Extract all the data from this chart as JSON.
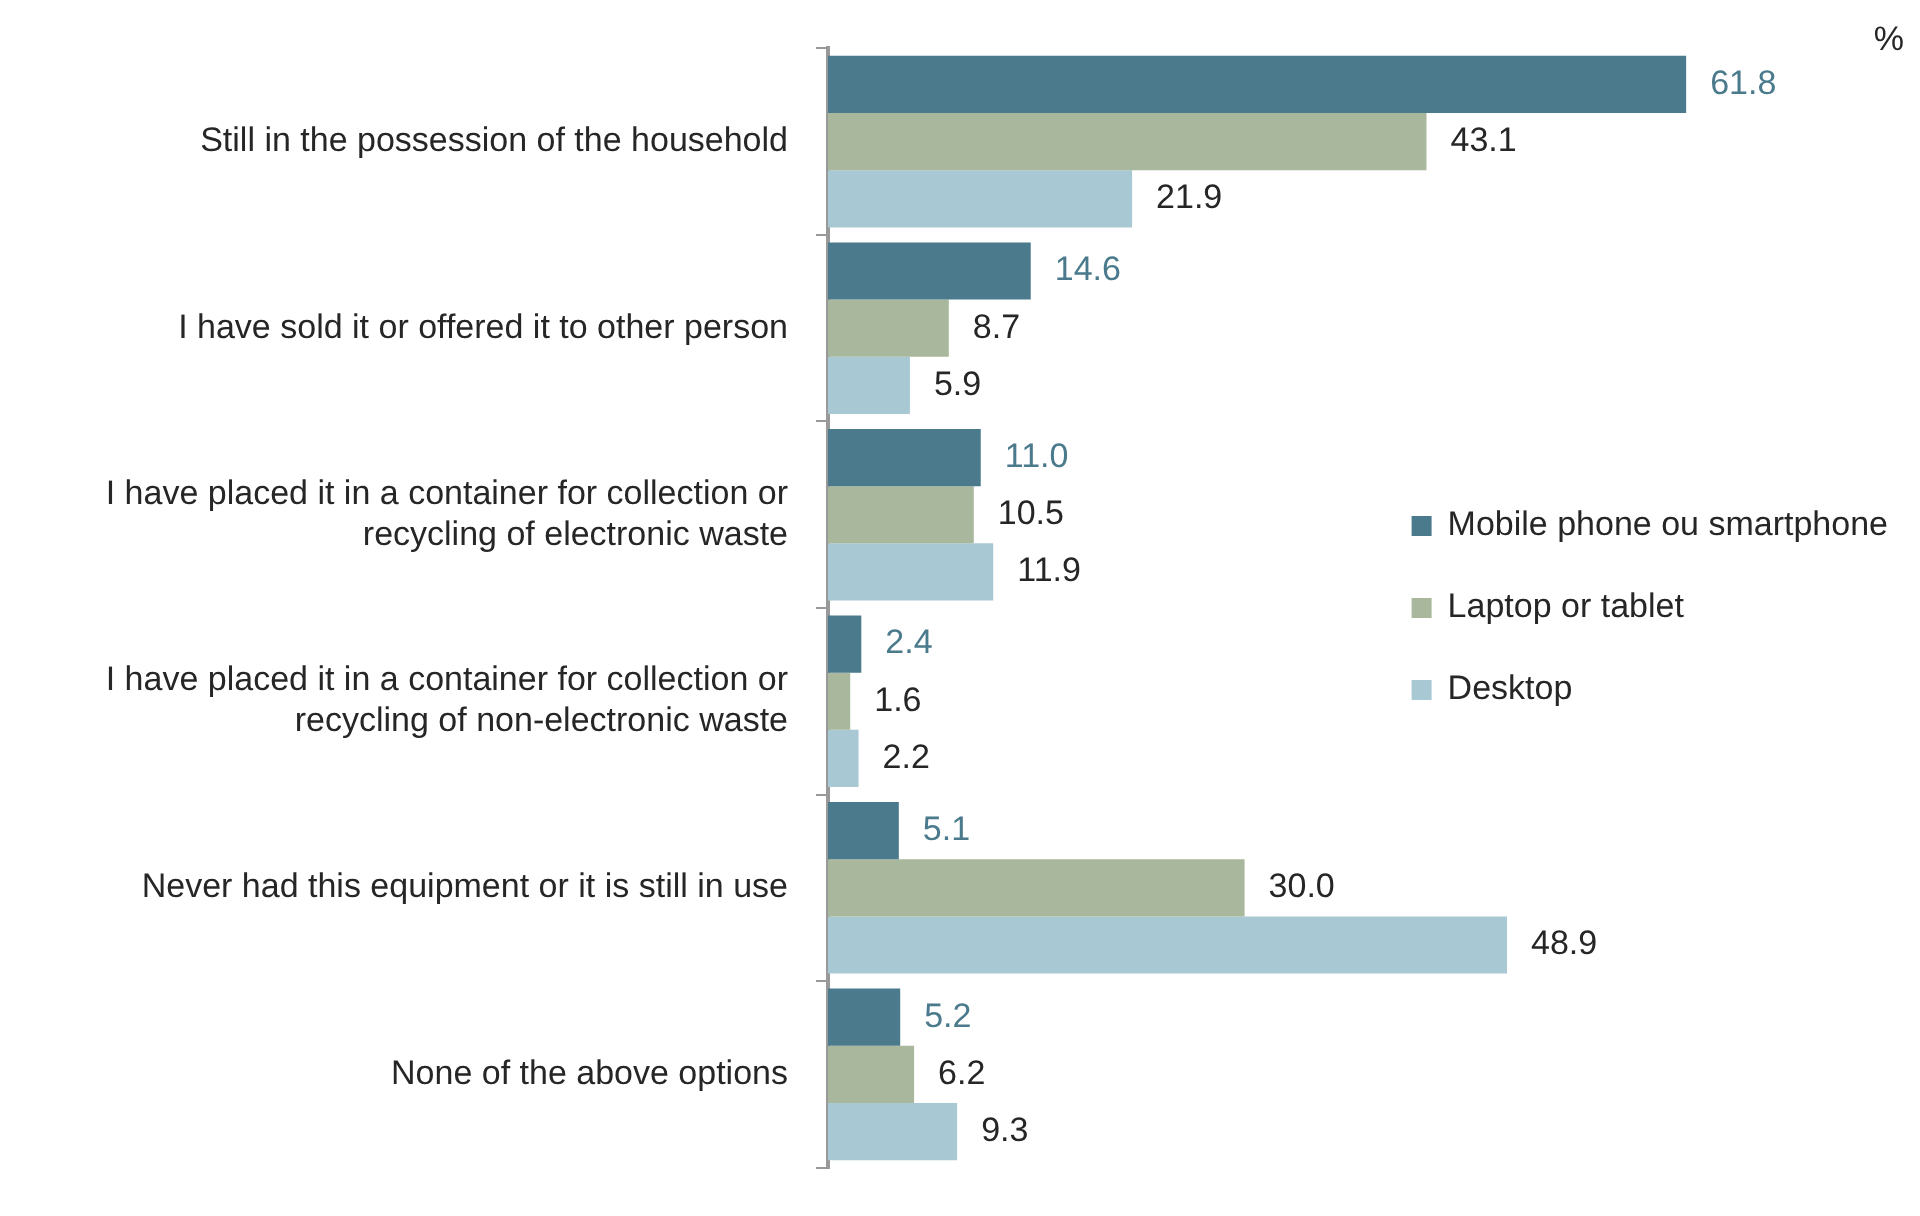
{
  "chart_data": {
    "type": "bar",
    "orientation": "horizontal",
    "categories": [
      "Still in the possession of the household",
      "I have sold it or offered it to other person",
      "I have placed it in a container for collection or recycling of electronic waste",
      "I have placed it in a container for collection or recycling of non-electronic waste",
      "Never had this equipment or it is still in use",
      "None of the above options"
    ],
    "series": [
      {
        "name": "Mobile phone ou smartphone",
        "color": "#4a7a8c",
        "values": [
          61.8,
          14.6,
          11.0,
          2.4,
          5.1,
          5.2
        ],
        "value_labels": [
          "61.8",
          "14.6",
          "11.0",
          "2.4",
          "5.1",
          "5.2"
        ]
      },
      {
        "name": "Laptop or tablet",
        "color": "#a9b89c",
        "values": [
          43.1,
          8.7,
          10.5,
          1.6,
          30.0,
          6.2
        ],
        "value_labels": [
          "43.1",
          "8.7",
          "10.5",
          "1.6",
          "30.0",
          "6.2"
        ]
      },
      {
        "name": "Desktop",
        "color": "#a8c8d4",
        "values": [
          21.9,
          5.9,
          11.9,
          2.2,
          48.9,
          9.3
        ],
        "value_labels": [
          "21.9",
          "5.9",
          "11.9",
          "2.2",
          "48.9",
          "9.3"
        ]
      }
    ],
    "tick_labels": "y",
    "grid": false,
    "legend": "right",
    "annotations": [
      "%"
    ]
  }
}
